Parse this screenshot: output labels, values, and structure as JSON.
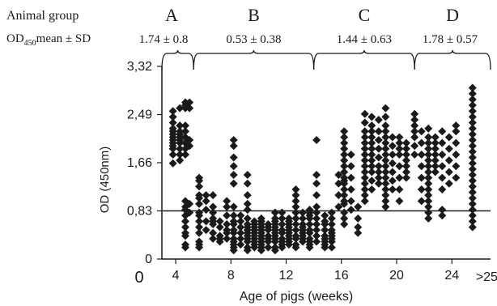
{
  "header": {
    "group_label": "Animal group",
    "od_label_prefix": "OD",
    "od_label_sub": "450",
    "od_label_suffix": "mean ± SD",
    "groups": [
      {
        "name": "A",
        "stat": "1.74 ± 0.8",
        "x_range": [
          3,
          5.3
        ]
      },
      {
        "name": "B",
        "stat": "0.53 ± 0.38",
        "x_range": [
          5.3,
          14
        ]
      },
      {
        "name": "C",
        "stat": "1.44 ± 0.63",
        "x_range": [
          14,
          21.3
        ]
      },
      {
        "name": "D",
        "stat": "1.78 ± 0.57",
        "x_range": [
          21.3,
          26.8
        ]
      }
    ]
  },
  "chart_data": {
    "type": "scatter",
    "xlabel": "Age of pigs (weeks)",
    "ylabel": "OD (450nm)",
    "xlim": [
      3,
      26.8
    ],
    "ylim": [
      0,
      3.32
    ],
    "x_ticks": [
      4,
      8,
      12,
      16,
      20,
      24
    ],
    "x_tick_labels": [
      "4",
      "8",
      "12",
      "16",
      "20",
      "24"
    ],
    "x_extra_tick": {
      "x": 25.5,
      "label": ">25"
    },
    "x_origin_label": "0",
    "y_ticks": [
      0,
      0.83,
      1.66,
      2.49,
      3.32
    ],
    "y_tick_labels": [
      "0",
      "0,83",
      "1,66",
      "2,49",
      "3,32"
    ],
    "cutoff_line": 0.83,
    "marker": "filled-diamond",
    "marker_color": "#1a1a1a",
    "grid": false,
    "columns": [
      {
        "x": 3.8,
        "y": [
          1.65,
          1.8,
          1.9,
          1.95,
          2.0,
          2.05,
          2.1,
          2.15,
          2.2,
          2.25,
          2.35,
          2.45,
          2.55
        ]
      },
      {
        "x": 4.3,
        "y": [
          1.7,
          1.8,
          1.9,
          2.0,
          2.05,
          2.1,
          2.15,
          2.2,
          2.3,
          2.6
        ]
      },
      {
        "x": 4.7,
        "y": [
          0.2,
          0.25,
          0.4,
          0.45,
          0.55,
          0.65,
          0.75,
          0.85,
          0.9,
          1.0,
          1.8,
          1.9,
          2.0,
          2.1,
          2.2,
          2.3,
          2.6,
          2.65,
          2.7
        ]
      },
      {
        "x": 5.0,
        "y": [
          0.8,
          0.95,
          1.95,
          2.05,
          2.6,
          2.7
        ]
      },
      {
        "x": 5.7,
        "y": [
          0.2,
          0.25,
          0.3,
          0.45,
          0.55,
          0.65,
          0.75,
          0.8,
          0.95,
          1.05,
          1.1,
          1.25,
          1.35,
          1.4
        ]
      },
      {
        "x": 6.2,
        "y": [
          0.5,
          0.65,
          0.85,
          1.0,
          1.1
        ]
      },
      {
        "x": 6.7,
        "y": [
          0.35,
          0.45,
          0.6,
          0.65,
          0.7,
          0.8,
          0.9,
          1.1
        ]
      },
      {
        "x": 7.2,
        "y": [
          0.3,
          0.35,
          0.4,
          0.55,
          0.65
        ]
      },
      {
        "x": 7.7,
        "y": [
          0.35,
          0.45,
          0.5,
          0.6,
          0.75,
          0.9,
          1.0
        ]
      },
      {
        "x": 8.2,
        "y": [
          0.15,
          0.2,
          0.25,
          0.3,
          0.35,
          0.45,
          0.5,
          0.6,
          0.65,
          0.75,
          0.9,
          1.3,
          1.45,
          1.6,
          1.75,
          1.95,
          2.05
        ]
      },
      {
        "x": 8.7,
        "y": [
          0.25,
          0.35,
          0.45,
          0.55,
          0.65,
          0.75
        ]
      },
      {
        "x": 9.2,
        "y": [
          0.15,
          0.2,
          0.3,
          0.35,
          0.4,
          0.45,
          0.5,
          0.55,
          0.6,
          0.7,
          0.85,
          0.95,
          1.1,
          1.3,
          1.45
        ]
      },
      {
        "x": 9.7,
        "y": [
          0.2,
          0.25,
          0.3,
          0.35,
          0.4,
          0.45,
          0.5,
          0.55,
          0.6,
          0.65
        ]
      },
      {
        "x": 10.2,
        "y": [
          0.15,
          0.2,
          0.25,
          0.3,
          0.35,
          0.4,
          0.45,
          0.5,
          0.55,
          0.6,
          0.65,
          0.7
        ]
      },
      {
        "x": 10.7,
        "y": [
          0.2,
          0.3,
          0.35,
          0.4,
          0.5,
          0.55,
          0.6
        ]
      },
      {
        "x": 11.2,
        "y": [
          0.15,
          0.2,
          0.3,
          0.35,
          0.4,
          0.45,
          0.5,
          0.55,
          0.6,
          0.65,
          0.7,
          0.8
        ]
      },
      {
        "x": 11.7,
        "y": [
          0.2,
          0.25,
          0.3,
          0.35,
          0.45,
          0.5,
          0.6,
          0.7,
          0.8
        ]
      },
      {
        "x": 12.2,
        "y": [
          0.25,
          0.3,
          0.35,
          0.4,
          0.45,
          0.5,
          0.55,
          0.6,
          0.65,
          0.7
        ]
      },
      {
        "x": 12.7,
        "y": [
          0.2,
          0.25,
          0.35,
          0.4,
          0.5,
          0.6,
          0.7,
          0.8,
          0.9,
          1.0,
          1.1,
          1.2
        ]
      },
      {
        "x": 13.2,
        "y": [
          0.3,
          0.35,
          0.4,
          0.45,
          0.5,
          0.55,
          0.6,
          0.7,
          0.8
        ]
      },
      {
        "x": 13.7,
        "y": [
          0.2,
          0.25,
          0.3,
          0.35,
          0.45,
          0.5,
          0.6,
          0.7,
          0.75,
          0.8,
          0.85
        ]
      },
      {
        "x": 14.2,
        "y": [
          0.3,
          0.4,
          0.5,
          0.6,
          0.7,
          0.8,
          0.9,
          1.1,
          1.3,
          1.45,
          2.05
        ]
      },
      {
        "x": 14.8,
        "y": [
          0.2,
          0.25,
          0.3,
          0.35,
          0.4,
          0.5,
          0.6,
          0.65,
          0.75
        ]
      },
      {
        "x": 15.3,
        "y": [
          0.2,
          0.3,
          0.35,
          0.4,
          0.45,
          0.5,
          0.6,
          0.7,
          0.8
        ]
      },
      {
        "x": 15.8,
        "y": [
          0.9,
          1.1,
          1.3,
          1.45
        ]
      },
      {
        "x": 16.2,
        "y": [
          0.6,
          0.7,
          0.8,
          0.95,
          1.0,
          1.1,
          1.2,
          1.3,
          1.35,
          1.4,
          1.5,
          1.6,
          1.7,
          1.8,
          1.9,
          2.0,
          2.1,
          2.2
        ]
      },
      {
        "x": 16.7,
        "y": [
          0.85,
          1.0,
          1.2,
          1.4,
          1.6,
          1.8
        ]
      },
      {
        "x": 17.2,
        "y": [
          0.45,
          0.55,
          0.7,
          0.9
        ]
      },
      {
        "x": 17.7,
        "y": [
          1.0,
          1.1,
          1.2,
          1.3,
          1.4,
          1.5,
          1.6,
          1.7,
          1.8,
          1.9,
          2.0,
          2.1,
          2.2,
          2.35,
          2.5
        ]
      },
      {
        "x": 18.2,
        "y": [
          1.2,
          1.35,
          1.5,
          1.6,
          1.7,
          1.8,
          1.9,
          2.0,
          2.1,
          2.2,
          2.3,
          2.45
        ]
      },
      {
        "x": 18.7,
        "y": [
          1.3,
          1.4,
          1.5,
          1.6,
          1.75,
          1.9,
          2.05,
          2.2,
          2.4
        ]
      },
      {
        "x": 19.2,
        "y": [
          0.9,
          1.0,
          1.1,
          1.2,
          1.3,
          1.4,
          1.5,
          1.6,
          1.7,
          1.8,
          1.9,
          2.0,
          2.1,
          2.2,
          2.3,
          2.45,
          2.6
        ]
      },
      {
        "x": 19.7,
        "y": [
          1.2,
          1.35,
          1.5,
          1.65,
          1.8,
          1.95,
          2.1
        ]
      },
      {
        "x": 20.2,
        "y": [
          1.0,
          1.2,
          1.4,
          1.6,
          1.8,
          1.9,
          2.0,
          2.1
        ]
      },
      {
        "x": 20.7,
        "y": [
          1.4,
          1.5,
          1.6,
          1.7,
          1.8,
          1.9,
          2.0
        ]
      },
      {
        "x": 21.3,
        "y": [
          1.8,
          1.95,
          2.1,
          2.2,
          2.3,
          2.4,
          2.5
        ]
      },
      {
        "x": 21.8,
        "y": [
          1.0,
          1.2,
          1.4,
          1.6,
          1.8,
          2.0,
          2.2
        ]
      },
      {
        "x": 22.3,
        "y": [
          0.7,
          0.8,
          0.9,
          1.0,
          1.1,
          1.2,
          1.3,
          1.4,
          1.5,
          1.6,
          1.7,
          1.8,
          1.9,
          2.0,
          2.1,
          2.25
        ]
      },
      {
        "x": 22.8,
        "y": [
          1.5,
          1.6,
          1.7,
          1.8,
          1.9,
          2.0,
          2.1
        ]
      },
      {
        "x": 23.3,
        "y": [
          0.75,
          0.85,
          1.2,
          1.4,
          1.6,
          1.8,
          2.0,
          2.2
        ]
      },
      {
        "x": 23.8,
        "y": [
          1.3,
          1.5,
          1.7,
          1.9,
          2.1
        ]
      },
      {
        "x": 24.3,
        "y": [
          1.4,
          1.6,
          1.8,
          2.0,
          2.2,
          2.3
        ]
      },
      {
        "x": 25.5,
        "y": [
          0.55,
          0.65,
          0.75,
          0.85,
          0.95,
          1.05,
          1.15,
          1.25,
          1.35,
          1.45,
          1.55,
          1.65,
          1.75,
          1.85,
          1.95,
          2.05,
          2.15,
          2.25,
          2.35,
          2.45,
          2.55,
          2.65,
          2.75,
          2.85,
          2.95
        ]
      }
    ]
  }
}
